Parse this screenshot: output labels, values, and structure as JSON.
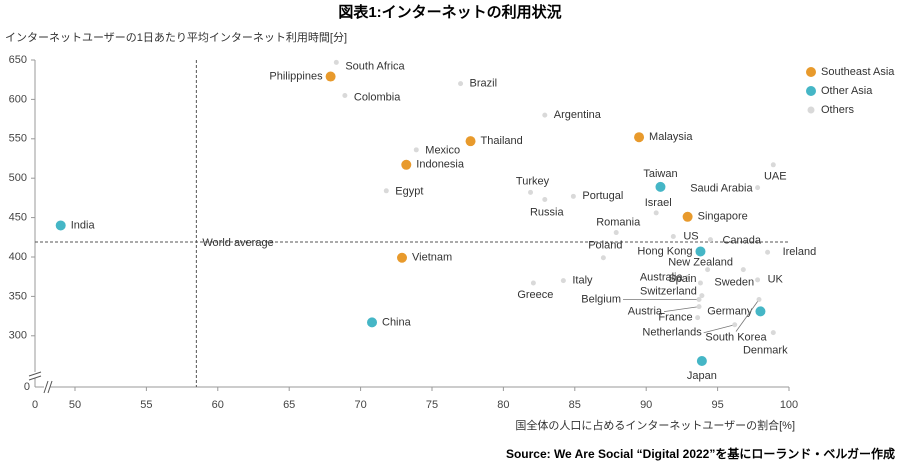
{
  "chart_data": {
    "type": "scatter",
    "title": "図表1:インターネットの利用状況",
    "y_label": "インターネットユーザーの1日あたり平均インターネット利用時間[分]",
    "x_label": "国全体の人口に占めるインターネットユーザーの割合[%]",
    "source": "Source: We Are Social “Digital 2022”を基にローランド・ベルガー作成",
    "x_axis_break_label": "0",
    "y_axis_break_label": "0",
    "xlim": [
      47.2,
      100
    ],
    "ylim": [
      235,
      650
    ],
    "xticks": [
      50,
      55,
      60,
      65,
      70,
      75,
      80,
      85,
      90,
      95,
      100
    ],
    "yticks": [
      300,
      350,
      400,
      450,
      500,
      550,
      600,
      650
    ],
    "reference_label": "World average",
    "reference_x": 58.5,
    "reference_y": 419,
    "legend": "top-right",
    "series": [
      {
        "name": "Southeast Asia",
        "color": "#e89a2c",
        "labels": [
          "Philippines",
          "Thailand",
          "Malaysia",
          "Indonesia",
          "Singapore",
          "Vietnam"
        ],
        "x": [
          67.9,
          77.7,
          89.5,
          73.2,
          92.9,
          72.9
        ],
        "values": [
          629,
          547,
          552,
          517,
          451,
          399
        ]
      },
      {
        "name": "Other Asia",
        "color": "#45b6c6",
        "labels": [
          "India",
          "Taiwan",
          "Hong Kong",
          "China",
          "Germany",
          "Japan"
        ],
        "x": [
          49.0,
          91.0,
          93.8,
          70.8,
          98.0,
          93.9
        ],
        "values": [
          440,
          489,
          407,
          317,
          331,
          268
        ]
      },
      {
        "name": "Others",
        "color": "#d9d9d9",
        "labels": [
          "South Africa",
          "Brazil",
          "Colombia",
          "Argentina",
          "Mexico",
          "Egypt",
          "Turkey",
          "Russia",
          "Portugal",
          "Israel",
          "Romania",
          "US",
          "Poland",
          "Canada",
          "UAE",
          "Saudi Arabia",
          "Ireland",
          "New Zealand",
          "Australia",
          "Spain",
          "Sweden",
          "UK",
          "Italy",
          "Greece",
          "Switzerland",
          "Belgium",
          "Austria",
          "France",
          "Netherlands",
          "South Korea",
          "Denmark"
        ],
        "x": [
          68.3,
          77.0,
          68.9,
          82.9,
          73.9,
          71.8,
          81.9,
          82.9,
          84.9,
          90.7,
          87.9,
          91.9,
          87.0,
          94.5,
          98.9,
          97.8,
          98.5,
          94.3,
          92.9,
          93.8,
          96.8,
          97.8,
          84.2,
          82.1,
          93.9,
          93.7,
          93.7,
          93.6,
          96.2,
          97.9,
          98.9
        ],
        "values": [
          647,
          620,
          605,
          580,
          536,
          484,
          482,
          473,
          477,
          456,
          431,
          426,
          399,
          422,
          517,
          488,
          406,
          384,
          374,
          367,
          384,
          371,
          370,
          367,
          351,
          346,
          337,
          323,
          314,
          346,
          304
        ]
      }
    ]
  }
}
